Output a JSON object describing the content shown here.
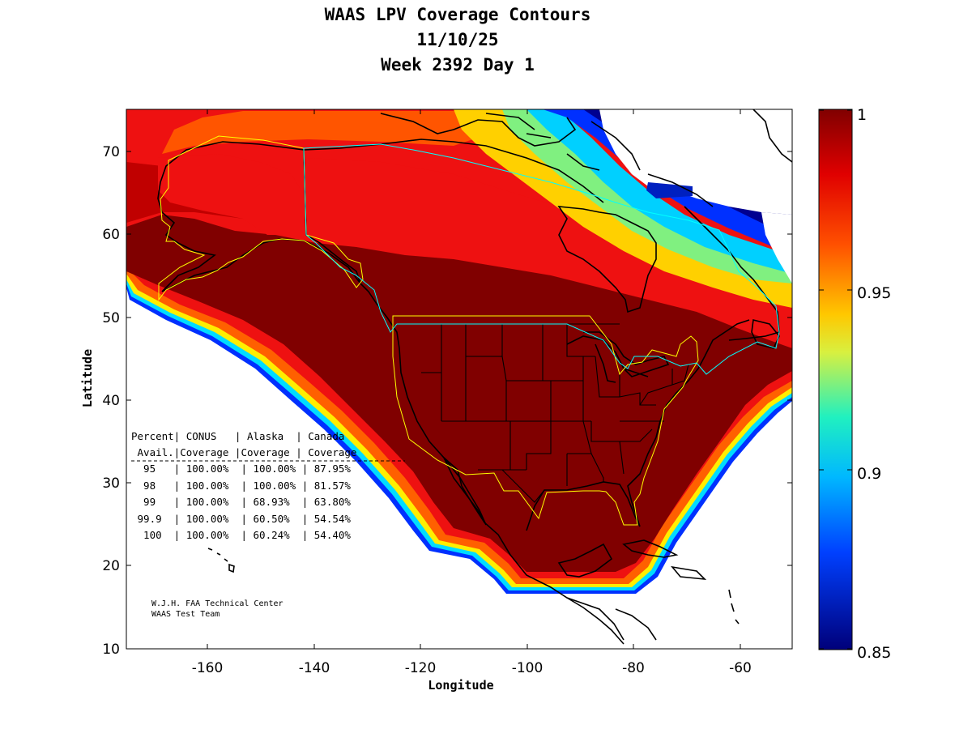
{
  "title": {
    "line1": "WAAS LPV Coverage Contours",
    "line2": "11/10/25",
    "line3": "Week 2392 Day 1"
  },
  "axes": {
    "xlabel": "Longitude",
    "ylabel": "Latitude",
    "xticks": [
      "-160",
      "-140",
      "-120",
      "-100",
      "-80",
      "-60"
    ],
    "yticks": [
      "70",
      "60",
      "50",
      "40",
      "30",
      "20",
      "10"
    ],
    "xlim": [
      -175,
      -50
    ],
    "ylim": [
      10,
      75
    ]
  },
  "colorbar": {
    "labels": [
      "1",
      "0.95",
      "0.9",
      "0.85"
    ],
    "min": 0.85,
    "max": 1.0
  },
  "colors": {
    "dark_red": "#800000",
    "red": "#f01010",
    "orange": "#ff7000",
    "yellow": "#ffee00",
    "cyan": "#00dcff",
    "blue": "#0030ff",
    "dark_blue": "#000090",
    "conus_border": "#ffff00",
    "canada_border": "#00ffff"
  },
  "table": {
    "header1": "Percent| CONUS   | Alaska  | Canada",
    "header2": " Avail.|Coverage |Coverage | Coverage",
    "rows": [
      "  95   | 100.00%  | 100.00% | 87.95%",
      "  98   | 100.00%  | 100.00% | 81.57%",
      "  99   | 100.00%  | 68.93%  | 63.80%",
      " 99.9  | 100.00%  | 60.50%  | 54.54%",
      "  100  | 100.00%  | 60.24%  | 54.40%"
    ]
  },
  "credits": {
    "line1": "W.J.H. FAA Technical Center",
    "line2": "WAAS Test Team"
  }
}
